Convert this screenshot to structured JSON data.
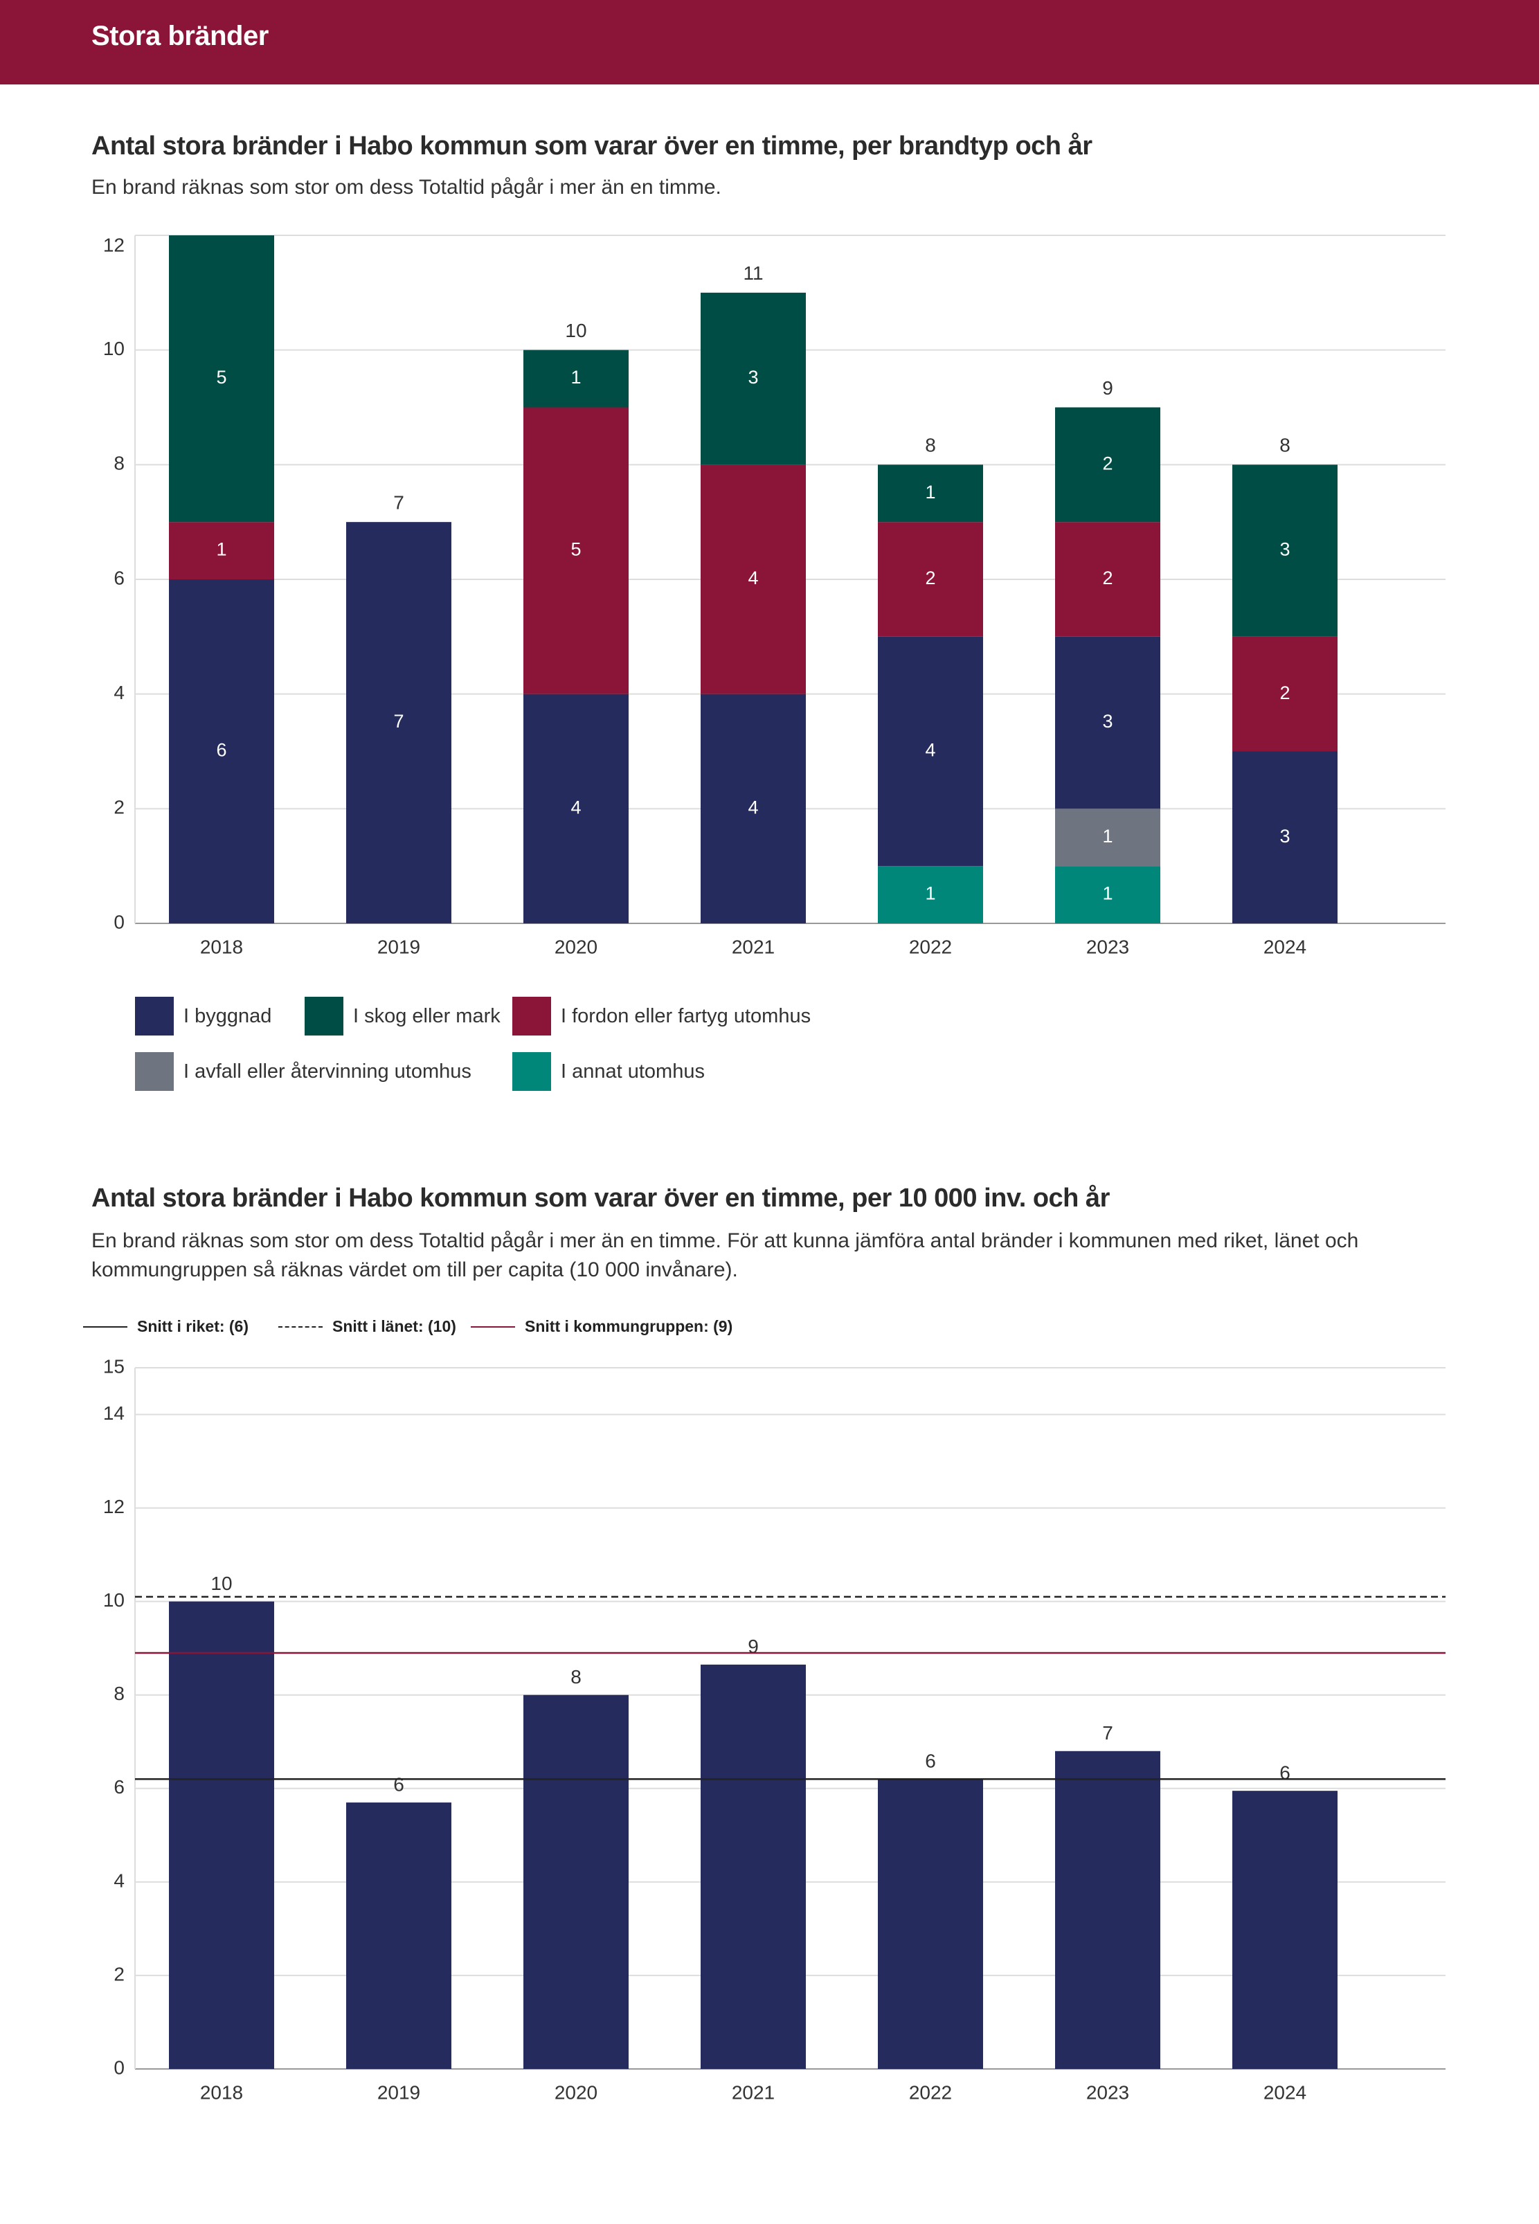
{
  "header": {
    "title": "Stora bränder"
  },
  "chart1": {
    "title": "Antal stora bränder i Habo kommun som varar över en timme, per brandtyp och år",
    "subtitle": "En brand räknas som stor om dess Totaltid pågår i mer än en timme."
  },
  "chart2": {
    "title": "Antal stora bränder i Habo kommun som varar över en timme, per 10 000 inv. och år",
    "subtitle": "En brand räknas som stor om dess Totaltid pågår i mer än en timme. För att kunna jämföra antal bränder i kommunen med riket, länet och kommungruppen så räknas värdet om till per capita (10 000 invånare)."
  },
  "colors": {
    "byggnad": "#252b5c",
    "skog": "#004d45",
    "fordon": "#8b1538",
    "avfall": "#6e7480",
    "annat": "#00877a",
    "banner": "#8b1538",
    "grid": "#dddddd"
  },
  "chart_data": [
    {
      "type": "bar",
      "stacked": true,
      "title": "Antal stora bränder i Habo kommun som varar över en timme, per brandtyp och år",
      "categories": [
        "2018",
        "2019",
        "2020",
        "2021",
        "2022",
        "2023",
        "2024"
      ],
      "series": [
        {
          "name": "I annat utomhus",
          "key": "annat",
          "values": [
            0,
            0,
            0,
            0,
            1,
            1,
            0
          ]
        },
        {
          "name": "I avfall eller återvinning utomhus",
          "key": "avfall",
          "values": [
            0,
            0,
            0,
            0,
            0,
            1,
            0
          ]
        },
        {
          "name": "I byggnad",
          "key": "byggnad",
          "values": [
            6,
            7,
            4,
            4,
            4,
            3,
            3
          ]
        },
        {
          "name": "I fordon eller fartyg utomhus",
          "key": "fordon",
          "values": [
            1,
            0,
            5,
            4,
            2,
            2,
            2
          ]
        },
        {
          "name": "I skog eller mark",
          "key": "skog",
          "values": [
            5,
            0,
            1,
            3,
            1,
            2,
            3
          ]
        }
      ],
      "totals": [
        "",
        "7",
        "10",
        "11",
        "8",
        "9",
        "8"
      ],
      "yticks": [
        "0",
        "2",
        "4",
        "6",
        "8",
        "10",
        "12"
      ],
      "ylim": [
        0,
        12
      ],
      "legend": [
        {
          "label": "I byggnad",
          "key": "byggnad"
        },
        {
          "label": "I skog eller mark",
          "key": "skog"
        },
        {
          "label": "I fordon eller fartyg utomhus",
          "key": "fordon"
        },
        {
          "label": "I avfall eller återvinning utomhus",
          "key": "avfall"
        },
        {
          "label": "I annat utomhus",
          "key": "annat"
        }
      ],
      "legend_position": "bottom-left"
    },
    {
      "type": "bar",
      "title": "Antal stora bränder i Habo kommun som varar över en timme, per 10 000 inv. och år",
      "categories": [
        "2018",
        "2019",
        "2020",
        "2021",
        "2022",
        "2023",
        "2024"
      ],
      "values": [
        10,
        5.7,
        8,
        8.65,
        6.2,
        6.8,
        5.95
      ],
      "value_labels": [
        "10",
        "6",
        "8",
        "9",
        "6",
        "7",
        "6"
      ],
      "yticks": [
        "0",
        "2",
        "4",
        "6",
        "8",
        "10",
        "12",
        "14",
        "15"
      ],
      "ylim": [
        0,
        15
      ],
      "reference_lines": [
        {
          "label": "Snitt i riket: (6)",
          "value": 6.2,
          "style": "solid",
          "color": "#222222"
        },
        {
          "label": "Snitt i länet: (10)",
          "value": 10.1,
          "style": "dashed",
          "color": "#222222"
        },
        {
          "label": "Snitt i kommungruppen: (9)",
          "value": 8.9,
          "style": "solid",
          "color": "#8b1538"
        }
      ],
      "legend_position": "top-left"
    }
  ]
}
